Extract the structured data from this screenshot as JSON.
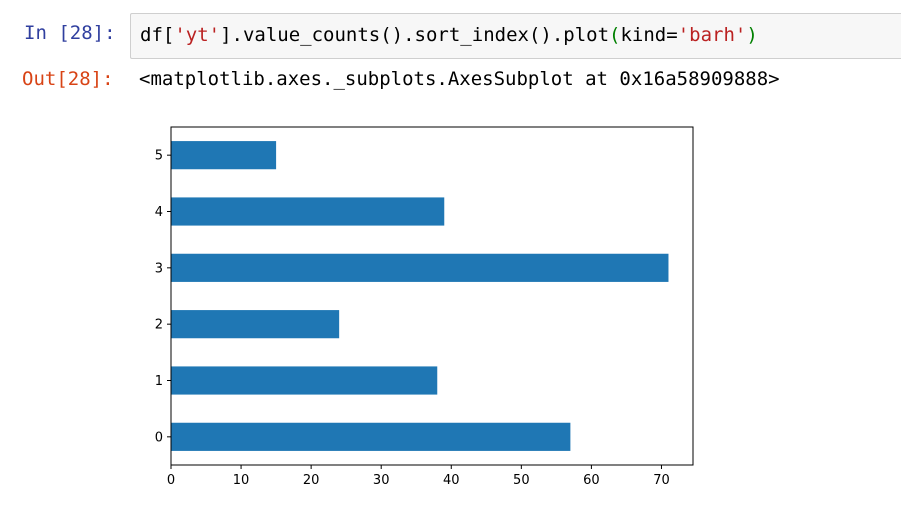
{
  "cell": {
    "in_prompt": "In [28]:",
    "out_prompt": "Out[28]:",
    "code_tokens": {
      "t1": "df[",
      "t2": "'yt'",
      "t3": "].value_counts().sort_index().plot",
      "t4": "(",
      "t5": "kind=",
      "t6": "'barh'",
      "t7": ")"
    },
    "output_text": "<matplotlib.axes._subplots.AxesSubplot at 0x16a58909888>"
  },
  "chart_data": {
    "type": "bar",
    "orientation": "horizontal",
    "categories": [
      "0",
      "1",
      "2",
      "3",
      "4",
      "5"
    ],
    "values": [
      57,
      38,
      24,
      71,
      39,
      15
    ],
    "xlim": [
      0,
      74.5
    ],
    "xticks": [
      "0",
      "10",
      "20",
      "30",
      "40",
      "50",
      "60",
      "70"
    ],
    "title": "",
    "xlabel": "",
    "ylabel": "",
    "bar_color": "#1f77b4",
    "grid": false
  }
}
